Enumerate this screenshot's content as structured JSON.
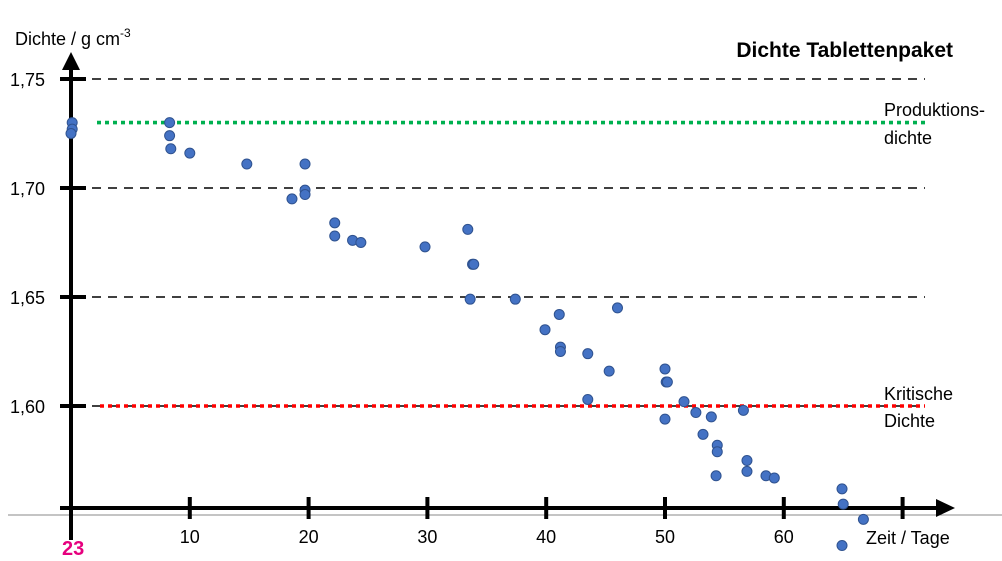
{
  "page_number": "23",
  "colors": {
    "point_fill": "#4472c4",
    "point_stroke": "#2f528f",
    "production_line": "#00b050",
    "critical_line": "#ff0000",
    "page_number": "#e6007e"
  },
  "chart_data": {
    "type": "scatter",
    "title": "Dichte Tablettenpaket",
    "xlabel": "Zeit / Tage",
    "ylabel_main": "Dichte / g cm",
    "ylabel_exp": "-3",
    "xlim": [
      0,
      70
    ],
    "ylim": [
      1.55,
      1.75
    ],
    "x_ticks": [
      10,
      20,
      30,
      40,
      50,
      60
    ],
    "x_tick_labels": [
      "10",
      "20",
      "30",
      "40",
      "50",
      "60"
    ],
    "y_ticks": [
      1.6,
      1.65,
      1.7,
      1.75
    ],
    "y_tick_labels": [
      "1,60",
      "1,65",
      "1,70",
      "1,75"
    ],
    "grid": "horizontal dashed",
    "reference_lines": [
      {
        "y": 1.73,
        "label_line1": "Produktions-",
        "label_line2": "dichte",
        "color": "#00b050"
      },
      {
        "y": 1.6,
        "label_line1": "Kritische",
        "label_line2": "Dichte",
        "color": "#ff0000"
      }
    ],
    "points": [
      [
        0.1,
        1.73
      ],
      [
        0.1,
        1.727
      ],
      [
        0.0,
        1.725
      ],
      [
        8.3,
        1.73
      ],
      [
        8.3,
        1.724
      ],
      [
        8.4,
        1.718
      ],
      [
        10.0,
        1.716
      ],
      [
        14.8,
        1.711
      ],
      [
        19.7,
        1.711
      ],
      [
        19.7,
        1.699
      ],
      [
        19.7,
        1.697
      ],
      [
        18.6,
        1.695
      ],
      [
        22.2,
        1.684
      ],
      [
        22.2,
        1.678
      ],
      [
        23.7,
        1.676
      ],
      [
        24.4,
        1.675
      ],
      [
        29.8,
        1.673
      ],
      [
        33.4,
        1.681
      ],
      [
        33.8,
        1.665
      ],
      [
        33.9,
        1.665
      ],
      [
        33.6,
        1.649
      ],
      [
        37.4,
        1.649
      ],
      [
        39.9,
        1.635
      ],
      [
        41.1,
        1.642
      ],
      [
        41.2,
        1.627
      ],
      [
        41.2,
        1.625
      ],
      [
        43.5,
        1.624
      ],
      [
        43.5,
        1.603
      ],
      [
        45.3,
        1.616
      ],
      [
        46.0,
        1.645
      ],
      [
        50.0,
        1.617
      ],
      [
        50.1,
        1.611
      ],
      [
        50.2,
        1.611
      ],
      [
        50.0,
        1.594
      ],
      [
        51.6,
        1.602
      ],
      [
        52.6,
        1.597
      ],
      [
        53.2,
        1.587
      ],
      [
        53.9,
        1.595
      ],
      [
        54.4,
        1.582
      ],
      [
        54.4,
        1.579
      ],
      [
        54.3,
        1.568
      ],
      [
        56.6,
        1.598
      ],
      [
        56.9,
        1.575
      ],
      [
        56.9,
        1.57
      ],
      [
        58.5,
        1.568
      ],
      [
        59.2,
        1.567
      ],
      [
        64.9,
        1.562
      ],
      [
        65.0,
        1.555
      ],
      [
        66.7,
        1.548
      ],
      [
        64.9,
        1.536
      ]
    ]
  }
}
